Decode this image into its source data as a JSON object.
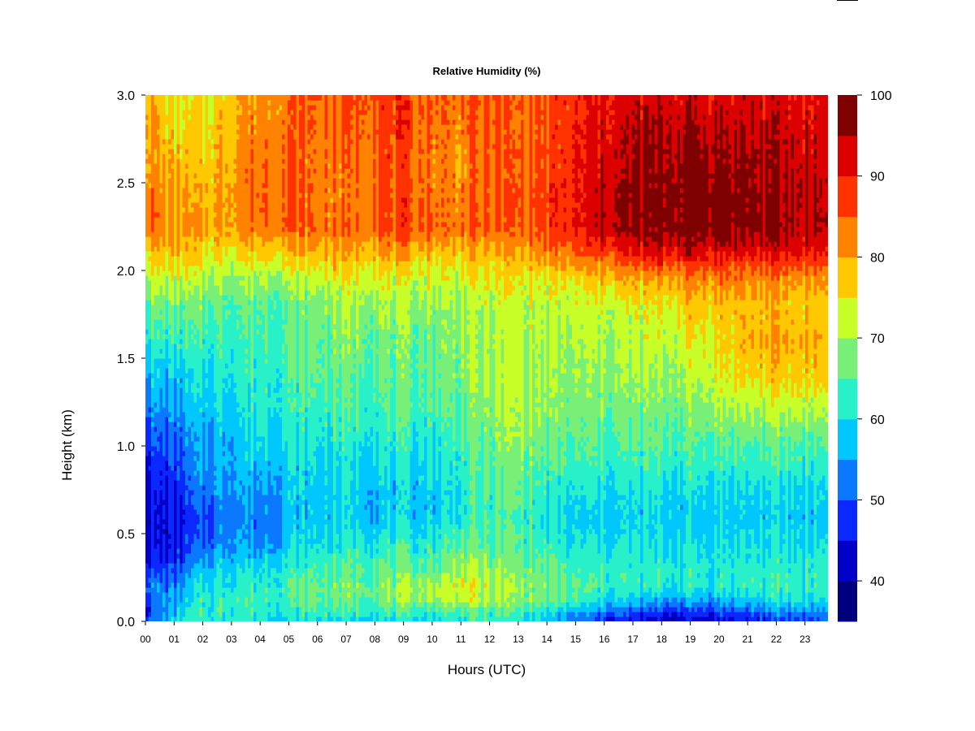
{
  "chart_data": {
    "type": "heatmap",
    "title": "Relative Humidity (%)",
    "xlabel": "Hours (UTC)",
    "ylabel": "Height (km)",
    "xlim": [
      0,
      23.8
    ],
    "ylim": [
      0.0,
      3.0
    ],
    "x_ticks": [
      "00",
      "01",
      "02",
      "03",
      "04",
      "05",
      "06",
      "07",
      "08",
      "09",
      "10",
      "11",
      "12",
      "13",
      "14",
      "15",
      "16",
      "17",
      "18",
      "19",
      "20",
      "21",
      "22",
      "23"
    ],
    "y_ticks": [
      "0.0",
      "0.5",
      "1.0",
      "1.5",
      "2.0",
      "2.5",
      "3.0"
    ],
    "colorbar": {
      "range": [
        35,
        100
      ],
      "ticks": [
        "40",
        "50",
        "60",
        "70",
        "80",
        "90",
        "100"
      ],
      "levels": [
        35,
        40,
        45,
        50,
        55,
        60,
        65,
        70,
        75,
        80,
        85,
        90,
        95,
        100
      ],
      "colors": [
        "#00007f",
        "#0000c8",
        "#0a28ff",
        "#0a78ff",
        "#00c8ff",
        "#28f0c8",
        "#78f078",
        "#c8ff28",
        "#ffc800",
        "#ff8200",
        "#ff3200",
        "#dc0000",
        "#7f0000"
      ]
    },
    "profile_heights_km": [
      0.0,
      0.05,
      0.12,
      0.2,
      0.3,
      0.45,
      0.6,
      0.75,
      0.9,
      1.05,
      1.2,
      1.4,
      1.6,
      1.8,
      1.95,
      2.05,
      2.15,
      2.25,
      2.4,
      2.6,
      2.8,
      3.0
    ],
    "profiles": [
      {
        "hour": 0.0,
        "rh": [
          52,
          46,
          50,
          54,
          47,
          43,
          43,
          44,
          46,
          49,
          53,
          58,
          62,
          67,
          72,
          76,
          80,
          85,
          85,
          82,
          82,
          80
        ]
      },
      {
        "hour": 1.0,
        "rh": [
          58,
          57,
          55,
          52,
          48,
          44,
          44,
          46,
          48,
          50,
          54,
          57,
          62,
          66,
          72,
          76,
          79,
          81,
          80,
          78,
          76,
          74
        ]
      },
      {
        "hour": 2.0,
        "rh": [
          62,
          63,
          62,
          60,
          57,
          50,
          48,
          52,
          54,
          55,
          57,
          60,
          63,
          66,
          70,
          74,
          77,
          80,
          78,
          77,
          76,
          74
        ]
      },
      {
        "hour": 3.0,
        "rh": [
          62,
          63,
          64,
          62,
          60,
          56,
          54,
          56,
          57,
          58,
          60,
          62,
          64,
          66,
          70,
          74,
          78,
          82,
          82,
          81,
          80,
          79
        ]
      },
      {
        "hour": 4.0,
        "rh": [
          60,
          62,
          64,
          63,
          60,
          54,
          52,
          55,
          58,
          60,
          62,
          63,
          64,
          66,
          70,
          75,
          80,
          84,
          85,
          84,
          83,
          82
        ]
      },
      {
        "hour": 5.0,
        "rh": [
          60,
          62,
          64,
          64,
          62,
          58,
          57,
          58,
          59,
          61,
          62,
          64,
          65,
          66,
          70,
          76,
          80,
          85,
          85,
          85,
          84,
          84
        ]
      },
      {
        "hour": 6.0,
        "rh": [
          60,
          63,
          66,
          66,
          64,
          60,
          58,
          58,
          59,
          61,
          63,
          65,
          66,
          68,
          72,
          77,
          81,
          84,
          83,
          83,
          84,
          85
        ]
      },
      {
        "hour": 7.0,
        "rh": [
          60,
          63,
          66,
          67,
          65,
          61,
          59,
          59,
          60,
          62,
          64,
          66,
          68,
          70,
          74,
          78,
          81,
          84,
          82,
          83,
          85,
          86
        ]
      },
      {
        "hour": 8.0,
        "rh": [
          60,
          63,
          67,
          68,
          66,
          62,
          58,
          58,
          60,
          62,
          64,
          66,
          67,
          70,
          74,
          78,
          82,
          86,
          86,
          86,
          87,
          88
        ]
      },
      {
        "hour": 9.0,
        "rh": [
          60,
          63,
          68,
          69,
          66,
          62,
          58,
          58,
          60,
          62,
          64,
          66,
          67,
          69,
          73,
          77,
          82,
          86,
          86,
          86,
          87,
          87
        ]
      },
      {
        "hour": 10.0,
        "rh": [
          60,
          63,
          70,
          71,
          66,
          62,
          58,
          58,
          60,
          62,
          64,
          66,
          67,
          69,
          73,
          76,
          81,
          85,
          84,
          83,
          84,
          85
        ]
      },
      {
        "hour": 11.0,
        "rh": [
          62,
          64,
          72,
          74,
          70,
          65,
          62,
          62,
          63,
          64,
          66,
          68,
          69,
          70,
          73,
          76,
          80,
          84,
          83,
          82,
          83,
          84
        ]
      },
      {
        "hour": 12.0,
        "rh": [
          62,
          64,
          70,
          72,
          69,
          65,
          63,
          64,
          66,
          67,
          68,
          70,
          70,
          71,
          74,
          77,
          81,
          85,
          85,
          85,
          86,
          86
        ]
      },
      {
        "hour": 13.0,
        "rh": [
          62,
          64,
          69,
          70,
          68,
          65,
          64,
          66,
          68,
          70,
          71,
          72,
          72,
          72,
          75,
          78,
          82,
          85,
          85,
          84,
          84,
          84
        ]
      },
      {
        "hour": 14.0,
        "rh": [
          56,
          60,
          65,
          67,
          65,
          62,
          60,
          62,
          64,
          66,
          68,
          69,
          70,
          71,
          74,
          79,
          84,
          87,
          87,
          86,
          86,
          86
        ]
      },
      {
        "hour": 15.0,
        "rh": [
          50,
          55,
          62,
          65,
          63,
          60,
          58,
          60,
          63,
          65,
          67,
          68,
          70,
          71,
          75,
          81,
          86,
          89,
          89,
          89,
          89,
          88
        ]
      },
      {
        "hour": 16.0,
        "rh": [
          46,
          52,
          60,
          64,
          63,
          60,
          58,
          60,
          63,
          65,
          67,
          69,
          71,
          73,
          78,
          84,
          90,
          95,
          95,
          93,
          92,
          91
        ]
      },
      {
        "hour": 17.0,
        "rh": [
          42,
          48,
          57,
          62,
          62,
          60,
          58,
          60,
          63,
          65,
          67,
          69,
          71,
          73,
          79,
          86,
          92,
          96,
          96,
          95,
          94,
          92
        ]
      },
      {
        "hour": 18.0,
        "rh": [
          40,
          46,
          55,
          62,
          62,
          60,
          58,
          60,
          63,
          65,
          67,
          69,
          72,
          74,
          80,
          88,
          94,
          97,
          97,
          96,
          95,
          93
        ]
      },
      {
        "hour": 19.0,
        "rh": [
          42,
          47,
          55,
          62,
          62,
          60,
          58,
          60,
          63,
          65,
          68,
          71,
          74,
          77,
          82,
          89,
          95,
          98,
          98,
          98,
          96,
          93
        ]
      },
      {
        "hour": 20.0,
        "rh": [
          43,
          48,
          56,
          62,
          62,
          60,
          58,
          60,
          63,
          66,
          70,
          74,
          76,
          78,
          83,
          89,
          95,
          98,
          98,
          97,
          95,
          92
        ]
      },
      {
        "hour": 21.0,
        "rh": [
          45,
          50,
          58,
          63,
          62,
          60,
          58,
          60,
          63,
          66,
          70,
          76,
          79,
          78,
          82,
          88,
          94,
          97,
          97,
          96,
          94,
          92
        ]
      },
      {
        "hour": 22.0,
        "rh": [
          47,
          52,
          60,
          63,
          62,
          60,
          58,
          60,
          63,
          66,
          71,
          77,
          80,
          78,
          82,
          88,
          94,
          96,
          96,
          95,
          94,
          92
        ]
      },
      {
        "hour": 23.8,
        "rh": [
          50,
          54,
          60,
          63,
          62,
          60,
          58,
          60,
          63,
          66,
          71,
          77,
          79,
          77,
          81,
          87,
          92,
          95,
          94,
          93,
          92,
          91
        ]
      }
    ]
  }
}
